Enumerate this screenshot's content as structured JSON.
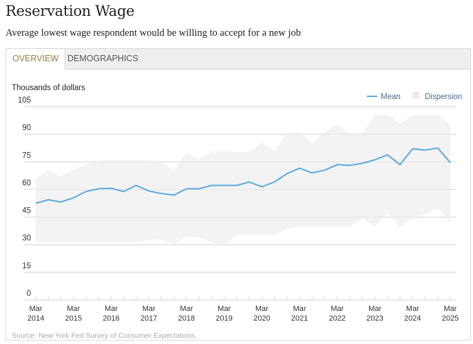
{
  "header": {
    "title": "Reservation Wage",
    "subtitle": "Average lowest wage respondent would be willing to accept for a new job"
  },
  "tabs": [
    {
      "label": "OVERVIEW",
      "active": true
    },
    {
      "label": "DEMOGRAPHICS",
      "active": false
    }
  ],
  "colors": {
    "mean": "#5aa9dd",
    "dispersion": "#f2f2f2",
    "active_tab": "#9a7a3c"
  },
  "source": "Source: New York Fed Survey of Consumer Expectations.",
  "chart_data": {
    "type": "line",
    "title": "Reservation Wage",
    "ylabel": "Thousands of dollars",
    "xlabel": "",
    "ylim": [
      0,
      105
    ],
    "yticks": [
      0,
      15,
      30,
      45,
      60,
      75,
      90,
      105
    ],
    "grid": true,
    "legend_position": "top-right",
    "legend": [
      "Mean",
      "Dispersion"
    ],
    "x": [
      "Mar 2014",
      "Jul 2014",
      "Nov 2014",
      "Mar 2015",
      "Jul 2015",
      "Nov 2015",
      "Mar 2016",
      "Jul 2016",
      "Nov 2016",
      "Mar 2017",
      "Jul 2017",
      "Nov 2017",
      "Mar 2018",
      "Jul 2018",
      "Nov 2018",
      "Mar 2019",
      "Jul 2019",
      "Nov 2019",
      "Mar 2020",
      "Jul 2020",
      "Nov 2020",
      "Mar 2021",
      "Jul 2021",
      "Nov 2021",
      "Mar 2022",
      "Jul 2022",
      "Nov 2022",
      "Mar 2023",
      "Jul 2023",
      "Nov 2023",
      "Mar 2024",
      "Jul 2024",
      "Nov 2024",
      "Mar 2025"
    ],
    "xtick_labels": [
      [
        "Mar",
        "2014"
      ],
      [
        "Mar",
        "2015"
      ],
      [
        "Mar",
        "2016"
      ],
      [
        "Mar",
        "2017"
      ],
      [
        "Mar",
        "2018"
      ],
      [
        "Mar",
        "2019"
      ],
      [
        "Mar",
        "2020"
      ],
      [
        "Mar",
        "2021"
      ],
      [
        "Mar",
        "2022"
      ],
      [
        "Mar",
        "2023"
      ],
      [
        "Mar",
        "2024"
      ],
      [
        "Mar",
        "2025"
      ]
    ],
    "series": [
      {
        "name": "Mean",
        "type": "line",
        "values": [
          52.5,
          54.4,
          53.2,
          55.5,
          58.9,
          60.4,
          60.7,
          58.9,
          62.2,
          59.2,
          57.8,
          57.0,
          60.4,
          60.4,
          62.2,
          62.2,
          62.2,
          64.1,
          61.5,
          64.1,
          68.6,
          71.6,
          69.0,
          70.5,
          73.5,
          73.1,
          74.2,
          76.1,
          78.8,
          73.5,
          82.1,
          81.4,
          82.5,
          74.6
        ]
      },
      {
        "name": "Dispersion",
        "type": "area",
        "upper": [
          66.0,
          70.5,
          66.8,
          70.9,
          73.5,
          75.8,
          75.8,
          75.8,
          75.8,
          75.8,
          75.4,
          70.1,
          80.3,
          76.1,
          80.6,
          80.6,
          80.3,
          80.3,
          85.5,
          80.6,
          91.1,
          91.1,
          85.5,
          91.1,
          95.3,
          90.4,
          90.4,
          100.5,
          100.5,
          95.6,
          100.5,
          100.5,
          100.5,
          95.3
        ],
        "lower": [
          31.5,
          31.5,
          31.5,
          31.5,
          31.5,
          31.5,
          31.5,
          31.5,
          31.5,
          32.6,
          33.0,
          30.0,
          34.5,
          34.0,
          31.5,
          29.6,
          35.2,
          35.2,
          35.2,
          35.2,
          38.6,
          39.8,
          39.8,
          39.8,
          39.8,
          39.8,
          44.6,
          39.8,
          47.3,
          39.8,
          44.6,
          46.5,
          49.9,
          42.0
        ]
      }
    ]
  }
}
